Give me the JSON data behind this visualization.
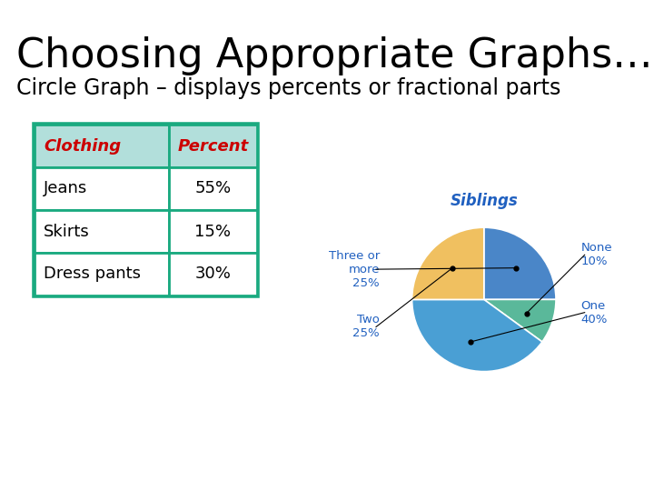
{
  "title": "Choosing Appropriate Graphs…",
  "subtitle": "Circle Graph – displays percents or fractional parts",
  "title_fontsize": 32,
  "subtitle_fontsize": 17,
  "background_color": "#ffffff",
  "table": {
    "headers": [
      "Clothing",
      "Percent"
    ],
    "rows": [
      [
        "Jeans",
        "55%"
      ],
      [
        "Skirts",
        "15%"
      ],
      [
        "Dress pants",
        "30%"
      ]
    ],
    "header_bg": "#b2dfdb",
    "header_text_color": "#cc0000",
    "border_color": "#1aaa80",
    "border_width": 2.0
  },
  "pie": {
    "title": "Siblings",
    "title_color": "#2060c0",
    "values": [
      25,
      10,
      40,
      25
    ],
    "colors": [
      "#4a86c8",
      "#5ab89a",
      "#4a9fd4",
      "#f0c060"
    ],
    "startangle": 90,
    "label_color": "#2060c0"
  }
}
